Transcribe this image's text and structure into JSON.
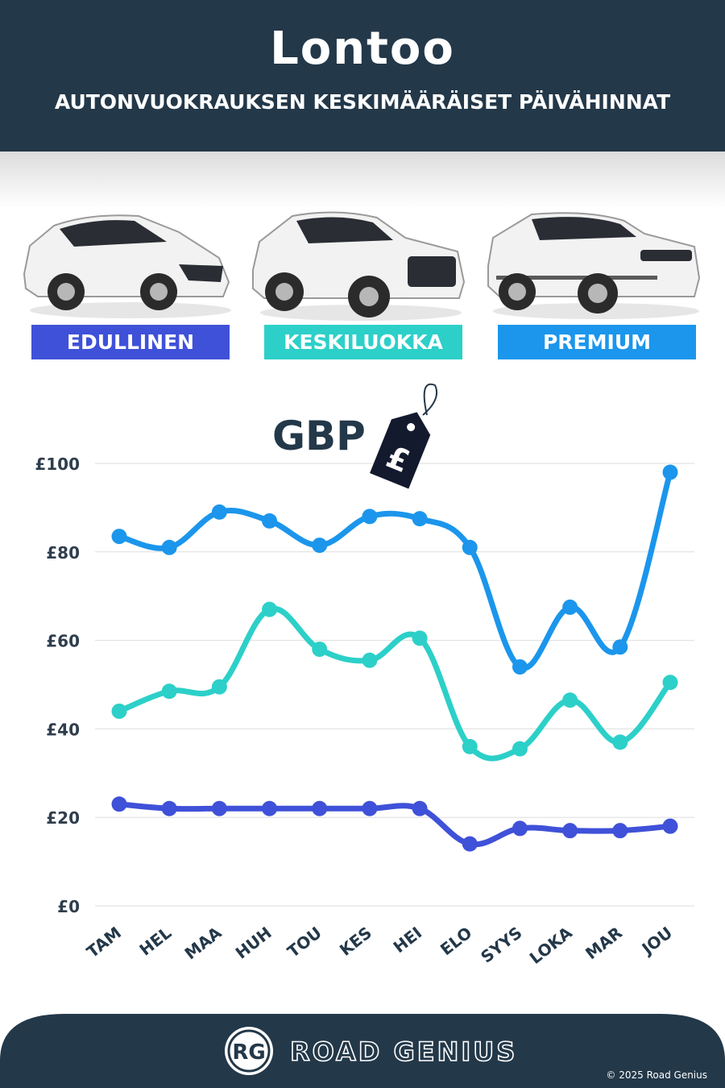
{
  "header": {
    "title": "Lontoo",
    "subtitle": "AUTONVUOKRAUKSEN KESKIMÄÄRÄISET PÄIVÄHINNAT"
  },
  "categories": [
    {
      "label": "EDULLINEN",
      "color": "#3f51d8"
    },
    {
      "label": "KESKILUOKKA",
      "color": "#2cd0c8"
    },
    {
      "label": "PREMIUM",
      "color": "#1b96ec"
    }
  ],
  "currency_badge": {
    "label": "GBP",
    "symbol": "£"
  },
  "chart_data": {
    "type": "line",
    "categories": [
      "TAM",
      "HEL",
      "MAA",
      "HUH",
      "TOU",
      "KES",
      "HEI",
      "ELO",
      "SYYS",
      "LOKA",
      "MAR",
      "JOU"
    ],
    "series": [
      {
        "name": "EDULLINEN",
        "color": "#3f51d8",
        "values": [
          23,
          22,
          22,
          22,
          22,
          22,
          22,
          14,
          17.5,
          17,
          17,
          18
        ]
      },
      {
        "name": "KESKILUOKKA",
        "color": "#2cd0c8",
        "values": [
          44,
          48.5,
          49.5,
          67,
          58,
          55.5,
          60.5,
          36,
          35.5,
          46.5,
          37,
          50.5
        ]
      },
      {
        "name": "PREMIUM",
        "color": "#1b96ec",
        "values": [
          83.5,
          81,
          89,
          87,
          81.5,
          88,
          87.5,
          81,
          54,
          67.5,
          58.5,
          98
        ]
      }
    ],
    "yticks": [
      "£0",
      "£20",
      "£40",
      "£60",
      "£80",
      "£100"
    ],
    "ytick_values": [
      0,
      20,
      40,
      60,
      80,
      100
    ],
    "ylim": [
      0,
      100
    ],
    "grid": true
  },
  "footer": {
    "logo_initials": "RG",
    "brand": "ROAD GENIUS",
    "copyright": "© 2025 Road Genius"
  }
}
